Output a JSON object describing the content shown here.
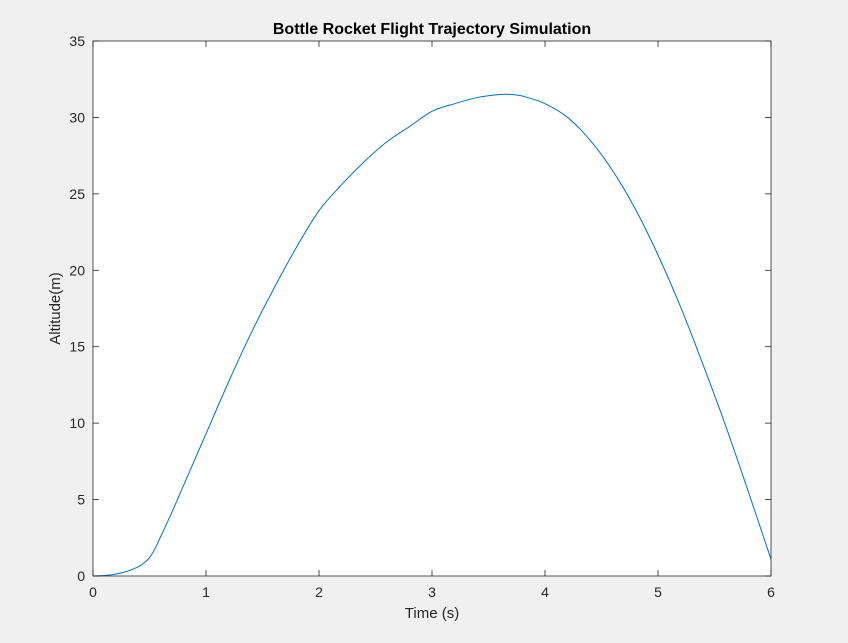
{
  "chart_data": {
    "type": "line",
    "title": "Bottle Rocket Flight Trajectory Simulation",
    "xlabel": "Time (s)",
    "ylabel": "Altitude(m)",
    "xlim": [
      0,
      6
    ],
    "ylim": [
      0,
      35
    ],
    "xticks": [
      0,
      1,
      2,
      3,
      4,
      5,
      6
    ],
    "yticks": [
      0,
      5,
      10,
      15,
      20,
      25,
      30,
      35
    ],
    "xtick_labels": [
      "0",
      "1",
      "2",
      "3",
      "4",
      "5",
      "6"
    ],
    "ytick_labels": [
      "0",
      "5",
      "10",
      "15",
      "20",
      "25",
      "30",
      "35"
    ],
    "grid": false,
    "background": "#ffffff",
    "figure_background": "#f0f0f0",
    "series": [
      {
        "color": "#0072bd",
        "x": [
          0,
          0.1,
          0.2,
          0.3,
          0.4,
          0.45,
          0.5,
          0.55,
          0.6,
          0.7,
          0.8,
          0.9,
          1.0,
          1.2,
          1.4,
          1.6,
          1.8,
          2.0,
          2.2,
          2.4,
          2.6,
          2.8,
          3.0,
          3.2,
          3.4,
          3.6,
          3.7,
          3.8,
          4.0,
          4.2,
          4.4,
          4.6,
          4.8,
          5.0,
          5.2,
          5.4,
          5.6,
          5.8,
          6.0
        ],
        "y": [
          0,
          0.03,
          0.12,
          0.3,
          0.6,
          0.85,
          1.2,
          1.8,
          2.6,
          4.2,
          5.9,
          7.6,
          9.3,
          12.7,
          15.9,
          18.8,
          21.5,
          23.9,
          25.6,
          27.1,
          28.4,
          29.4,
          30.4,
          30.9,
          31.3,
          31.5,
          31.5,
          31.4,
          30.9,
          30.0,
          28.5,
          26.5,
          24.0,
          21.0,
          17.6,
          13.8,
          9.8,
          5.5,
          1.1
        ]
      }
    ]
  }
}
